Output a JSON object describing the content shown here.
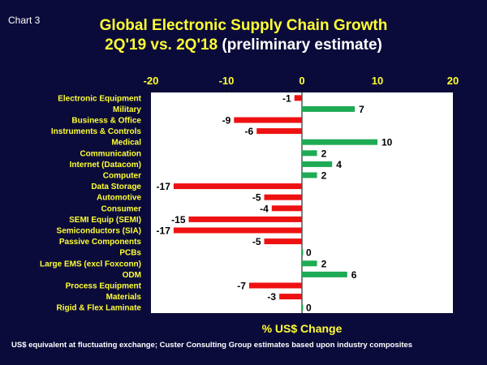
{
  "chart_label": "Chart 3",
  "title_line1": "Global Electronic Supply Chain Growth",
  "title_line2_main": "2Q'19 vs. 2Q'18",
  "title_line2_sub": "(preliminary estimate)",
  "footnote": "US$ equivalent at fluctuating exchange;  Custer Consulting Group estimates based upon industry composites",
  "colors": {
    "background": "#0b0b3b",
    "title": "#ffff33",
    "category_text": "#ffff33",
    "axis_text": "#ffff33",
    "positive": "#1faa55",
    "negative": "#ee1111",
    "plot_background": "#ffffff"
  },
  "chart_data": {
    "type": "bar",
    "orientation": "horizontal",
    "title": "Global Electronic Supply Chain Growth 2Q'19 vs. 2Q'18 (preliminary estimate)",
    "xlabel": "% US$ Change",
    "ylabel": "",
    "xlim": [
      -20,
      20
    ],
    "xticks": [
      -20,
      -10,
      0,
      10,
      20
    ],
    "grid": false,
    "categories": [
      "Electronic Equipment",
      "Military",
      "Business & Office",
      "Instruments & Controls",
      "Medical",
      "Communication",
      "Internet (Datacom)",
      "Computer",
      "Data Storage",
      "Automotive",
      "Consumer",
      "SEMI Equip (SEMI)",
      "Semiconductors (SIA)",
      "Passive Components",
      "PCBs",
      "Large EMS (excl Foxconn)",
      "ODM",
      "Process Equipment",
      "Materials",
      "Rigid & Flex Laminate"
    ],
    "values": [
      -1,
      7,
      -9,
      -6,
      10,
      2,
      4,
      2,
      -17,
      -5,
      -4,
      -15,
      -17,
      -5,
      0,
      2,
      6,
      -7,
      -3,
      0
    ],
    "data_labels": [
      "-1",
      "7",
      "-9",
      "-6",
      "10",
      "2",
      "4",
      "2",
      "-17",
      "-5",
      "-4",
      "-15",
      "-17",
      "-5",
      "0",
      "2",
      "6",
      "-7",
      "-3",
      "0"
    ]
  }
}
